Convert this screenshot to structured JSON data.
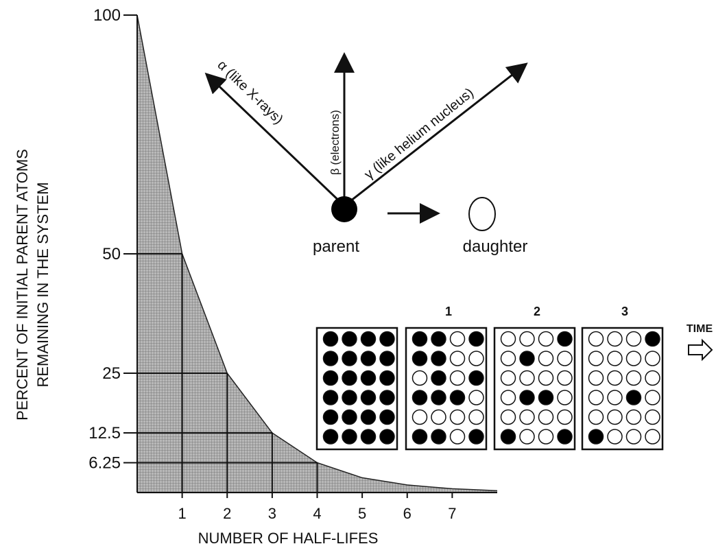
{
  "chart_data": {
    "type": "area",
    "xlabel": "NUMBER OF HALF-LIFES",
    "ylabel": [
      "PERCENT OF INITIAL PARENT ATOMS",
      "REMAINING IN THE SYSTEM"
    ],
    "x": [
      0,
      1,
      2,
      3,
      4,
      5,
      6,
      7,
      8
    ],
    "values": [
      100,
      50,
      25,
      12.5,
      6.25,
      3.1,
      1.6,
      0.8,
      0.4
    ],
    "color": "#9a9a9a",
    "xlim": [
      0,
      8
    ],
    "ylim": [
      0,
      100
    ],
    "xticks": [
      1,
      2,
      3,
      4,
      5,
      6,
      7
    ],
    "yticks": [
      6.25,
      12.5,
      25,
      50,
      100
    ]
  },
  "diagram": {
    "alpha": "α (like X-rays)",
    "beta": "β (electrons)",
    "gamma": "γ (like helium nucleus)",
    "parent": "parent",
    "daughter": "daughter",
    "steps": [
      "1",
      "2",
      "3"
    ],
    "time": "TIME"
  }
}
